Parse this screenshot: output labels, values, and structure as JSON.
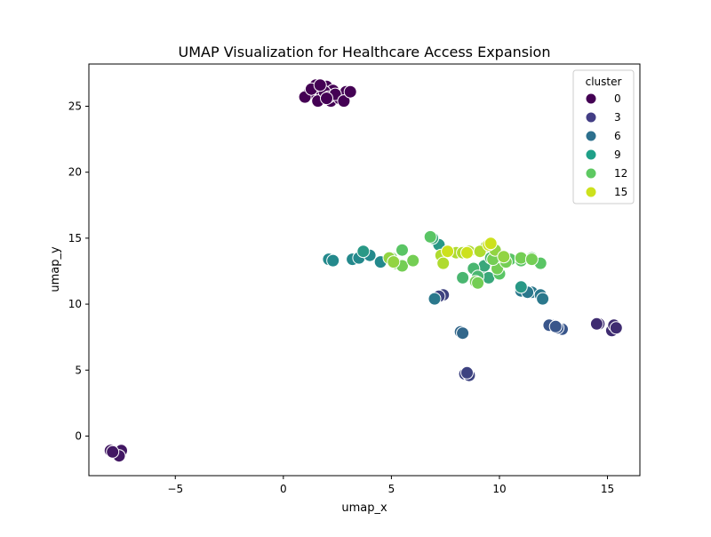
{
  "chart_data": {
    "type": "scatter",
    "title": "UMAP Visualization for Healthcare Access Expansion",
    "xlabel": "umap_x",
    "ylabel": "umap_y",
    "xlim": [
      -9.0,
      16.5
    ],
    "ylim": [
      -3.0,
      28.2
    ],
    "xticks": [
      -5,
      0,
      5,
      10,
      15
    ],
    "yticks": [
      0,
      5,
      10,
      15,
      20,
      25
    ],
    "xtick_labels": [
      "−5",
      "0",
      "5",
      "10",
      "15"
    ],
    "ytick_labels": [
      "0",
      "5",
      "10",
      "15",
      "20",
      "25"
    ],
    "grid": false,
    "legend": {
      "title": "cluster",
      "placement": "top-right",
      "entries": [
        {
          "label": "0",
          "color": "#440154"
        },
        {
          "label": "3",
          "color": "#433e85"
        },
        {
          "label": "6",
          "color": "#2d708e"
        },
        {
          "label": "9",
          "color": "#1fa088"
        },
        {
          "label": "12",
          "color": "#5ec962"
        },
        {
          "label": "15",
          "color": "#cde11d"
        }
      ]
    },
    "points": [
      {
        "x": 1.2,
        "y": 26.0,
        "c": 0
      },
      {
        "x": 1.5,
        "y": 26.6,
        "c": 0
      },
      {
        "x": 1.8,
        "y": 25.9,
        "c": 0
      },
      {
        "x": 2.0,
        "y": 26.5,
        "c": 0
      },
      {
        "x": 2.3,
        "y": 26.2,
        "c": 0
      },
      {
        "x": 1.0,
        "y": 25.7,
        "c": 0
      },
      {
        "x": 1.6,
        "y": 25.4,
        "c": 0
      },
      {
        "x": 2.2,
        "y": 25.4,
        "c": 0
      },
      {
        "x": 2.6,
        "y": 25.6,
        "c": 0
      },
      {
        "x": 2.9,
        "y": 26.1,
        "c": 0
      },
      {
        "x": 1.3,
        "y": 26.3,
        "c": 0
      },
      {
        "x": 1.9,
        "y": 26.1,
        "c": 0
      },
      {
        "x": 2.1,
        "y": 25.7,
        "c": 0
      },
      {
        "x": 2.4,
        "y": 25.9,
        "c": 0
      },
      {
        "x": 2.8,
        "y": 25.4,
        "c": 0
      },
      {
        "x": 1.7,
        "y": 26.6,
        "c": 0
      },
      {
        "x": 2.0,
        "y": 25.6,
        "c": 0
      },
      {
        "x": 3.1,
        "y": 26.1,
        "c": 0
      },
      {
        "x": -8.0,
        "y": -1.1,
        "c": 1
      },
      {
        "x": -7.5,
        "y": -1.1,
        "c": 1
      },
      {
        "x": -7.6,
        "y": -1.5,
        "c": 1
      },
      {
        "x": -7.9,
        "y": -1.2,
        "c": 1
      },
      {
        "x": 14.6,
        "y": 8.5,
        "c": 2
      },
      {
        "x": 15.2,
        "y": 8.0,
        "c": 2
      },
      {
        "x": 15.3,
        "y": 8.4,
        "c": 2
      },
      {
        "x": 15.4,
        "y": 8.2,
        "c": 2
      },
      {
        "x": 14.5,
        "y": 8.5,
        "c": 2
      },
      {
        "x": 8.4,
        "y": 4.7,
        "c": 3
      },
      {
        "x": 8.6,
        "y": 4.6,
        "c": 3
      },
      {
        "x": 8.5,
        "y": 4.8,
        "c": 3
      },
      {
        "x": 7.4,
        "y": 10.7,
        "c": 3
      },
      {
        "x": 7.2,
        "y": 10.6,
        "c": 3
      },
      {
        "x": 12.4,
        "y": 8.4,
        "c": 4
      },
      {
        "x": 12.9,
        "y": 8.1,
        "c": 4
      },
      {
        "x": 12.7,
        "y": 8.2,
        "c": 4
      },
      {
        "x": 12.3,
        "y": 8.4,
        "c": 4
      },
      {
        "x": 12.6,
        "y": 8.3,
        "c": 4
      },
      {
        "x": 8.2,
        "y": 7.9,
        "c": 5
      },
      {
        "x": 8.3,
        "y": 7.8,
        "c": 5
      },
      {
        "x": 7.0,
        "y": 10.4,
        "c": 6
      },
      {
        "x": 11.5,
        "y": 10.9,
        "c": 6
      },
      {
        "x": 11.9,
        "y": 10.7,
        "c": 6
      },
      {
        "x": 11.0,
        "y": 11.0,
        "c": 6
      },
      {
        "x": 12.0,
        "y": 10.4,
        "c": 6
      },
      {
        "x": 11.3,
        "y": 10.9,
        "c": 6
      },
      {
        "x": 2.1,
        "y": 13.4,
        "c": 7
      },
      {
        "x": 2.3,
        "y": 13.3,
        "c": 7
      },
      {
        "x": 3.2,
        "y": 13.4,
        "c": 7
      },
      {
        "x": 3.5,
        "y": 13.5,
        "c": 7
      },
      {
        "x": 4.0,
        "y": 13.7,
        "c": 7
      },
      {
        "x": 4.5,
        "y": 13.2,
        "c": 7
      },
      {
        "x": 11.0,
        "y": 11.3,
        "c": 8
      },
      {
        "x": 3.7,
        "y": 14.0,
        "c": 8
      },
      {
        "x": 7.2,
        "y": 14.5,
        "c": 8
      },
      {
        "x": 9.1,
        "y": 12.3,
        "c": 9
      },
      {
        "x": 9.5,
        "y": 12.0,
        "c": 9
      },
      {
        "x": 9.3,
        "y": 12.9,
        "c": 9
      },
      {
        "x": 6.9,
        "y": 15.0,
        "c": 9
      },
      {
        "x": 8.8,
        "y": 12.7,
        "c": 10
      },
      {
        "x": 9.0,
        "y": 12.1,
        "c": 10
      },
      {
        "x": 10.0,
        "y": 13.4,
        "c": 10
      },
      {
        "x": 8.3,
        "y": 12.0,
        "c": 10
      },
      {
        "x": 9.6,
        "y": 13.5,
        "c": 10
      },
      {
        "x": 6.8,
        "y": 15.1,
        "c": 11
      },
      {
        "x": 5.5,
        "y": 14.1,
        "c": 11
      },
      {
        "x": 10.5,
        "y": 13.4,
        "c": 11
      },
      {
        "x": 11.0,
        "y": 13.3,
        "c": 11
      },
      {
        "x": 11.5,
        "y": 13.5,
        "c": 11
      },
      {
        "x": 11.9,
        "y": 13.1,
        "c": 11
      },
      {
        "x": 10.0,
        "y": 12.3,
        "c": 11
      },
      {
        "x": 5.0,
        "y": 13.5,
        "c": 12
      },
      {
        "x": 5.2,
        "y": 13.1,
        "c": 12
      },
      {
        "x": 5.5,
        "y": 12.9,
        "c": 12
      },
      {
        "x": 6.0,
        "y": 13.3,
        "c": 12
      },
      {
        "x": 8.9,
        "y": 11.7,
        "c": 12
      },
      {
        "x": 9.0,
        "y": 11.6,
        "c": 12
      },
      {
        "x": 9.9,
        "y": 12.7,
        "c": 12
      },
      {
        "x": 9.7,
        "y": 13.4,
        "c": 12
      },
      {
        "x": 11.0,
        "y": 13.5,
        "c": 12
      },
      {
        "x": 11.5,
        "y": 13.4,
        "c": 12
      },
      {
        "x": 10.3,
        "y": 13.2,
        "c": 12
      },
      {
        "x": 4.9,
        "y": 13.5,
        "c": 13
      },
      {
        "x": 5.1,
        "y": 13.2,
        "c": 13
      },
      {
        "x": 9.4,
        "y": 14.4,
        "c": 13
      },
      {
        "x": 9.8,
        "y": 14.1,
        "c": 13
      },
      {
        "x": 10.2,
        "y": 13.6,
        "c": 13
      },
      {
        "x": 7.3,
        "y": 13.7,
        "c": 14
      },
      {
        "x": 7.4,
        "y": 13.1,
        "c": 14
      },
      {
        "x": 8.0,
        "y": 13.9,
        "c": 14
      },
      {
        "x": 8.3,
        "y": 13.9,
        "c": 14
      },
      {
        "x": 8.6,
        "y": 14.0,
        "c": 14
      },
      {
        "x": 9.1,
        "y": 14.0,
        "c": 14
      },
      {
        "x": 9.5,
        "y": 14.5,
        "c": 15
      },
      {
        "x": 9.6,
        "y": 14.6,
        "c": 15
      },
      {
        "x": 7.6,
        "y": 14.0,
        "c": 15
      },
      {
        "x": 8.5,
        "y": 13.9,
        "c": 15
      }
    ]
  }
}
